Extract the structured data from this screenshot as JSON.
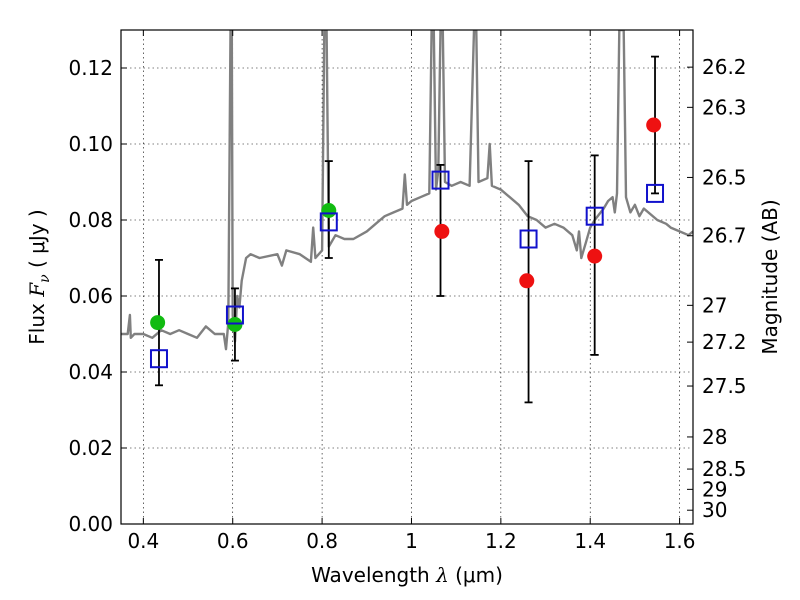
{
  "chart_data": {
    "type": "scatter",
    "title": "",
    "xlabel": {
      "pre": "Wavelength  ",
      "sym": "λ",
      "post": " (μm)"
    },
    "ylabel": {
      "pre": "Flux  ",
      "sym": "F",
      "sub": "ν",
      "post": "  ( μJy )"
    },
    "y2label": "Magnitude (AB)",
    "xlim": [
      0.35,
      1.63
    ],
    "ylim": [
      0.0,
      0.13
    ],
    "grid": true,
    "xticks": [
      {
        "v": 0.4,
        "label": "0.4"
      },
      {
        "v": 0.6,
        "label": "0.6"
      },
      {
        "v": 0.8,
        "label": "0.8"
      },
      {
        "v": 1.0,
        "label": "1"
      },
      {
        "v": 1.2,
        "label": "1.2"
      },
      {
        "v": 1.4,
        "label": "1.4"
      },
      {
        "v": 1.6,
        "label": "1.6"
      }
    ],
    "yticks": [
      {
        "v": 0.0,
        "label": "0.00"
      },
      {
        "v": 0.02,
        "label": "0.02"
      },
      {
        "v": 0.04,
        "label": "0.04"
      },
      {
        "v": 0.06,
        "label": "0.06"
      },
      {
        "v": 0.08,
        "label": "0.08"
      },
      {
        "v": 0.1,
        "label": "0.10"
      },
      {
        "v": 0.12,
        "label": "0.12"
      }
    ],
    "y2ticks": [
      {
        "label": "26.2",
        "mag": 26.2
      },
      {
        "label": "26.3",
        "mag": 26.3
      },
      {
        "label": "26.5",
        "mag": 26.5
      },
      {
        "label": "26.7",
        "mag": 26.7
      },
      {
        "label": "27",
        "mag": 27.0
      },
      {
        "label": "27.2",
        "mag": 27.2
      },
      {
        "label": "27.5",
        "mag": 27.5
      },
      {
        "label": "28",
        "mag": 28.0
      },
      {
        "label": "28.5",
        "mag": 28.5
      },
      {
        "label": "29",
        "mag": 29.0
      },
      {
        "label": "30",
        "mag": 30.0
      }
    ],
    "series": [
      {
        "kind": "model-spectrum",
        "color": "#808080",
        "points": [
          [
            0.35,
            0.05
          ],
          [
            0.365,
            0.05
          ],
          [
            0.37,
            0.055
          ],
          [
            0.372,
            0.049
          ],
          [
            0.38,
            0.05
          ],
          [
            0.4,
            0.05
          ],
          [
            0.42,
            0.049
          ],
          [
            0.44,
            0.051
          ],
          [
            0.46,
            0.05
          ],
          [
            0.48,
            0.051
          ],
          [
            0.5,
            0.05
          ],
          [
            0.52,
            0.049
          ],
          [
            0.54,
            0.052
          ],
          [
            0.56,
            0.05
          ],
          [
            0.58,
            0.05
          ],
          [
            0.585,
            0.046
          ],
          [
            0.59,
            0.053
          ],
          [
            0.595,
            0.13
          ],
          [
            0.598,
            0.13
          ],
          [
            0.6,
            0.055
          ],
          [
            0.605,
            0.048
          ],
          [
            0.61,
            0.06
          ],
          [
            0.615,
            0.057
          ],
          [
            0.62,
            0.064
          ],
          [
            0.63,
            0.07
          ],
          [
            0.64,
            0.071
          ],
          [
            0.66,
            0.07
          ],
          [
            0.7,
            0.071
          ],
          [
            0.71,
            0.068
          ],
          [
            0.72,
            0.072
          ],
          [
            0.75,
            0.071
          ],
          [
            0.775,
            0.069
          ],
          [
            0.78,
            0.078
          ],
          [
            0.785,
            0.07
          ],
          [
            0.8,
            0.072
          ],
          [
            0.805,
            0.13
          ],
          [
            0.81,
            0.13
          ],
          [
            0.815,
            0.073
          ],
          [
            0.83,
            0.076
          ],
          [
            0.85,
            0.075
          ],
          [
            0.87,
            0.075
          ],
          [
            0.9,
            0.077
          ],
          [
            0.92,
            0.079
          ],
          [
            0.94,
            0.081
          ],
          [
            0.96,
            0.082
          ],
          [
            0.98,
            0.083
          ],
          [
            0.985,
            0.092
          ],
          [
            0.99,
            0.084
          ],
          [
            1.0,
            0.085
          ],
          [
            1.02,
            0.086
          ],
          [
            1.04,
            0.087
          ],
          [
            1.045,
            0.13
          ],
          [
            1.05,
            0.13
          ],
          [
            1.055,
            0.088
          ],
          [
            1.06,
            0.093
          ],
          [
            1.065,
            0.13
          ],
          [
            1.07,
            0.13
          ],
          [
            1.075,
            0.09
          ],
          [
            1.09,
            0.089
          ],
          [
            1.11,
            0.09
          ],
          [
            1.13,
            0.089
          ],
          [
            1.14,
            0.13
          ],
          [
            1.145,
            0.13
          ],
          [
            1.15,
            0.09
          ],
          [
            1.17,
            0.091
          ],
          [
            1.175,
            0.1
          ],
          [
            1.18,
            0.089
          ],
          [
            1.2,
            0.088
          ],
          [
            1.22,
            0.086
          ],
          [
            1.24,
            0.084
          ],
          [
            1.26,
            0.081
          ],
          [
            1.28,
            0.08
          ],
          [
            1.3,
            0.078
          ],
          [
            1.32,
            0.079
          ],
          [
            1.34,
            0.078
          ],
          [
            1.36,
            0.076
          ],
          [
            1.37,
            0.072
          ],
          [
            1.375,
            0.077
          ],
          [
            1.38,
            0.07
          ],
          [
            1.39,
            0.074
          ],
          [
            1.4,
            0.078
          ],
          [
            1.41,
            0.08
          ],
          [
            1.43,
            0.083
          ],
          [
            1.44,
            0.085
          ],
          [
            1.45,
            0.086
          ],
          [
            1.455,
            0.082
          ],
          [
            1.46,
            0.087
          ],
          [
            1.465,
            0.13
          ],
          [
            1.475,
            0.13
          ],
          [
            1.48,
            0.086
          ],
          [
            1.49,
            0.082
          ],
          [
            1.5,
            0.084
          ],
          [
            1.51,
            0.081
          ],
          [
            1.52,
            0.083
          ],
          [
            1.55,
            0.08
          ],
          [
            1.57,
            0.079
          ],
          [
            1.58,
            0.078
          ],
          [
            1.6,
            0.077
          ],
          [
            1.62,
            0.076
          ],
          [
            1.63,
            0.077
          ]
        ]
      },
      {
        "kind": "green-points",
        "color": "#11bb11",
        "points": [
          {
            "x": 0.432,
            "y": 0.053
          },
          {
            "x": 0.605,
            "y": 0.0525
          },
          {
            "x": 0.815,
            "y": 0.0825
          }
        ]
      },
      {
        "kind": "red-points",
        "color": "#ee1111",
        "points": [
          {
            "x": 1.068,
            "y": 0.077
          },
          {
            "x": 1.258,
            "y": 0.064
          },
          {
            "x": 1.41,
            "y": 0.0705
          },
          {
            "x": 1.542,
            "y": 0.105
          }
        ]
      },
      {
        "kind": "blue-squares",
        "color": "#1111cc",
        "points": [
          {
            "x": 0.435,
            "y": 0.0435,
            "lo": 0.0365,
            "hi": 0.0695
          },
          {
            "x": 0.605,
            "y": 0.055,
            "lo": 0.043,
            "hi": 0.062
          },
          {
            "x": 0.815,
            "y": 0.0795,
            "lo": 0.07,
            "hi": 0.0955
          },
          {
            "x": 1.065,
            "y": 0.0905,
            "lo": 0.06,
            "hi": 0.0945
          },
          {
            "x": 1.262,
            "y": 0.075,
            "lo": 0.032,
            "hi": 0.0955
          },
          {
            "x": 1.41,
            "y": 0.081,
            "lo": 0.0445,
            "hi": 0.097
          },
          {
            "x": 1.545,
            "y": 0.087,
            "lo": 0.087,
            "hi": 0.123
          }
        ]
      }
    ]
  }
}
